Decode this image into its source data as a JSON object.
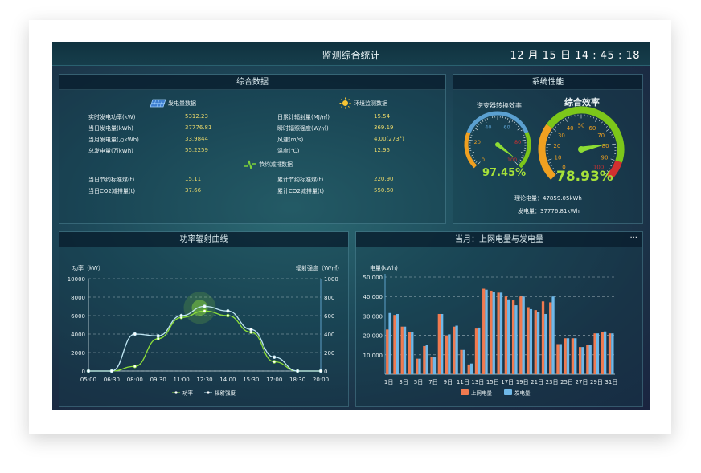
{
  "header": {
    "title": "监测综合统计",
    "clock": "12 月 15 日  14 : 45 : 18"
  },
  "summary": {
    "title": "综合数据",
    "power_section": "发电量数据",
    "env_section": "环境监测数据",
    "save_section": "节约减排数据",
    "power_rows": [
      {
        "label": "实时发电功率(kW)",
        "value": "5312.23"
      },
      {
        "label": "当日发电量(kWh)",
        "value": "37776.81"
      },
      {
        "label": "当月发电量(万kWh)",
        "value": "33.9844"
      },
      {
        "label": "总发电量(万kWh)",
        "value": "55.2259"
      }
    ],
    "env_rows": [
      {
        "label": "日累计辐射量(MJ/㎡)",
        "value": "15.54"
      },
      {
        "label": "瞬时辐照强度(W/㎡)",
        "value": "369.19"
      },
      {
        "label": "风速(m/s)",
        "value": "4.00(273°)"
      },
      {
        "label": "温度(℃)",
        "value": "12.95"
      }
    ],
    "save_rows": [
      {
        "label": "当日节约标准煤(t)",
        "value": "15.11",
        "label2": "累计节约标准煤(t)",
        "value2": "220.90"
      },
      {
        "label": "当日CO2减排量(t)",
        "value": "37.66",
        "label2": "累计CO2减排量(t)",
        "value2": "550.60"
      }
    ]
  },
  "performance": {
    "title": "系统性能",
    "gauge1": {
      "title": "逆变器转换效率",
      "value": 97.45,
      "display": "97.45%",
      "ticks": [
        "0",
        "20",
        "40",
        "60",
        "80",
        "100"
      ]
    },
    "gauge2": {
      "title": "综合效率",
      "value": 78.93,
      "display": "78.93%",
      "ticks": [
        "0",
        "10",
        "20",
        "30",
        "40",
        "50",
        "60",
        "70",
        "80",
        "90",
        "100"
      ]
    },
    "theory": "理论电量：47859.05kWh",
    "actual": "发电量：37776.81kWh",
    "colors": {
      "gauge_low": "#f0a020",
      "gauge_mid": "#5ba0d0",
      "gauge_high": "#7cc61a",
      "gauge_top": "#d23030"
    }
  },
  "power_chart": {
    "title": "功率辐射曲线",
    "ylabel_left": "功率（kW）",
    "ylabel_right": "辐射强度（W/㎡）",
    "legend": [
      "功率",
      "辐射强度"
    ],
    "chart_data": {
      "type": "line",
      "x": [
        "05:00",
        "06:30",
        "08:00",
        "09:30",
        "11:00",
        "12:30",
        "14:00",
        "15:30",
        "17:00",
        "18:30",
        "20:00"
      ],
      "ylim_left": [
        0,
        10000
      ],
      "ylim_right": [
        0,
        1000
      ],
      "left_ticks": [
        "10000",
        "8000",
        "6000",
        "4000",
        "2000",
        "0"
      ],
      "right_ticks": [
        "1000",
        "800",
        "600",
        "400",
        "200",
        "0"
      ],
      "series": [
        {
          "name": "功率",
          "axis": "left",
          "color": "#8ee03a",
          "values": [
            0,
            0,
            500,
            3500,
            5800,
            6500,
            6000,
            4200,
            1000,
            0,
            0
          ]
        },
        {
          "name": "辐射强度",
          "axis": "right",
          "color": "#bfe6f3",
          "values": [
            0,
            0,
            400,
            380,
            600,
            700,
            650,
            450,
            150,
            0,
            0
          ]
        }
      ]
    }
  },
  "monthly_chart": {
    "title": "当月：上网电量与发电量",
    "more": "···",
    "ylabel": "电量(kWh)",
    "legend": [
      "上网电量",
      "发电量"
    ],
    "chart_data": {
      "type": "bar",
      "ylim": [
        0,
        50000
      ],
      "y_ticks": [
        "50,000",
        "40,000",
        "30,000",
        "20,000",
        "10,000"
      ],
      "x_ticks": [
        "1日",
        "3日",
        "5日",
        "7日",
        "9日",
        "11日",
        "13日",
        "15日",
        "17日",
        "19日",
        "21日",
        "23日",
        "25日",
        "27日",
        "29日",
        "31日"
      ],
      "categories": [
        "1",
        "2",
        "3",
        "4",
        "5",
        "6",
        "7",
        "8",
        "9",
        "10",
        "11",
        "12",
        "13",
        "14",
        "15",
        "16",
        "17",
        "18",
        "19",
        "20",
        "21",
        "22",
        "23",
        "24",
        "25",
        "26",
        "27",
        "28",
        "29",
        "30",
        "31"
      ],
      "series": [
        {
          "name": "上网电量",
          "color": "#f07a50",
          "values": [
            23000,
            30500,
            24500,
            21500,
            8000,
            14500,
            9000,
            31000,
            20000,
            24500,
            12500,
            5000,
            23500,
            44000,
            43000,
            42000,
            40000,
            38000,
            40000,
            34500,
            33000,
            37500,
            37000,
            15500,
            18500,
            18500,
            14000,
            15000,
            21000,
            21500,
            21000
          ]
        },
        {
          "name": "发电量",
          "color": "#6fb8e8",
          "values": [
            31500,
            31000,
            24500,
            21500,
            8000,
            15000,
            9000,
            31000,
            20500,
            25000,
            12500,
            5500,
            24000,
            43500,
            42500,
            42000,
            38500,
            35500,
            40000,
            33500,
            32000,
            31000,
            40000,
            15500,
            18500,
            18500,
            14000,
            15000,
            21000,
            22000,
            21000
          ]
        }
      ]
    }
  }
}
